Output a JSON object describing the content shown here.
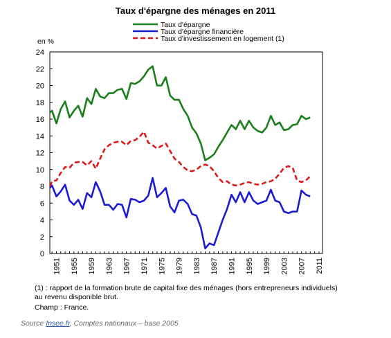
{
  "chart_data": {
    "type": "line",
    "title": "Taux d'épargne des ménages en 2011",
    "ylabel": "en %",
    "ylim": [
      0,
      24
    ],
    "yticks": [
      "0",
      "2",
      "4",
      "6",
      "8",
      "10",
      "12",
      "14",
      "16",
      "18",
      "20",
      "22",
      "24"
    ],
    "xlim": [
      1949.5,
      2011.8
    ],
    "xtick_labels": [
      "1951",
      "1955",
      "1959",
      "1963",
      "1967",
      "1971",
      "1975",
      "1979",
      "1983",
      "1987",
      "1991",
      "1995",
      "1999",
      "2003",
      "2007",
      "2011"
    ],
    "grid": false,
    "legend_position": "top-center",
    "series": [
      {
        "name": "Taux d'épargne",
        "color": "#1a7f1a",
        "style": "solid",
        "points": [
          [
            1949.5,
            16.8
          ],
          [
            1950,
            17.0
          ],
          [
            1951,
            15.5
          ],
          [
            1952,
            17.2
          ],
          [
            1953,
            18.1
          ],
          [
            1954,
            16.2
          ],
          [
            1955,
            17.0
          ],
          [
            1956,
            17.6
          ],
          [
            1957,
            16.3
          ],
          [
            1958,
            18.5
          ],
          [
            1959,
            17.8
          ],
          [
            1960,
            19.6
          ],
          [
            1961,
            18.7
          ],
          [
            1962,
            18.5
          ],
          [
            1963,
            19.1
          ],
          [
            1964,
            19.1
          ],
          [
            1965,
            19.5
          ],
          [
            1966,
            19.6
          ],
          [
            1967,
            18.4
          ],
          [
            1968,
            20.3
          ],
          [
            1969,
            20.2
          ],
          [
            1970,
            20.5
          ],
          [
            1971,
            21.1
          ],
          [
            1972,
            21.9
          ],
          [
            1973,
            22.3
          ],
          [
            1974,
            20.0
          ],
          [
            1975,
            20.0
          ],
          [
            1976,
            21.0
          ],
          [
            1977,
            18.8
          ],
          [
            1978,
            18.3
          ],
          [
            1979,
            18.3
          ],
          [
            1980,
            17.2
          ],
          [
            1981,
            16.4
          ],
          [
            1982,
            15.0
          ],
          [
            1983,
            14.3
          ],
          [
            1984,
            13.1
          ],
          [
            1985,
            11.1
          ],
          [
            1986,
            11.4
          ],
          [
            1987,
            11.8
          ],
          [
            1988,
            12.7
          ],
          [
            1989,
            13.5
          ],
          [
            1990,
            14.4
          ],
          [
            1991,
            15.3
          ],
          [
            1992,
            14.8
          ],
          [
            1993,
            15.8
          ],
          [
            1994,
            14.8
          ],
          [
            1995,
            15.8
          ],
          [
            1996,
            15.0
          ],
          [
            1997,
            14.6
          ],
          [
            1998,
            14.4
          ],
          [
            1999,
            15.0
          ],
          [
            2000,
            16.4
          ],
          [
            2001,
            15.3
          ],
          [
            2002,
            15.6
          ],
          [
            2003,
            14.7
          ],
          [
            2004,
            14.8
          ],
          [
            2005,
            15.3
          ],
          [
            2006,
            15.4
          ],
          [
            2007,
            16.4
          ],
          [
            2008,
            16.0
          ],
          [
            2009,
            16.2
          ]
        ]
      },
      {
        "name": "Taux d'épargne financière",
        "color": "#1b1bd1",
        "style": "solid",
        "points": [
          [
            1949.5,
            7.8
          ],
          [
            1950,
            8.1
          ],
          [
            1951,
            6.8
          ],
          [
            1952,
            7.4
          ],
          [
            1953,
            8.2
          ],
          [
            1954,
            6.3
          ],
          [
            1955,
            5.8
          ],
          [
            1956,
            6.4
          ],
          [
            1957,
            5.3
          ],
          [
            1958,
            7.2
          ],
          [
            1959,
            6.7
          ],
          [
            1960,
            8.5
          ],
          [
            1961,
            7.4
          ],
          [
            1962,
            5.8
          ],
          [
            1963,
            5.8
          ],
          [
            1964,
            5.2
          ],
          [
            1965,
            5.9
          ],
          [
            1966,
            5.8
          ],
          [
            1967,
            4.3
          ],
          [
            1968,
            6.5
          ],
          [
            1969,
            6.4
          ],
          [
            1970,
            6.1
          ],
          [
            1971,
            6.3
          ],
          [
            1972,
            6.9
          ],
          [
            1973,
            9.0
          ],
          [
            1974,
            6.7
          ],
          [
            1975,
            7.2
          ],
          [
            1976,
            7.8
          ],
          [
            1977,
            5.6
          ],
          [
            1978,
            4.9
          ],
          [
            1979,
            6.3
          ],
          [
            1980,
            6.4
          ],
          [
            1981,
            5.9
          ],
          [
            1982,
            4.7
          ],
          [
            1983,
            4.5
          ],
          [
            1984,
            3.1
          ],
          [
            1985,
            0.6
          ],
          [
            1986,
            1.2
          ],
          [
            1987,
            1.0
          ],
          [
            1988,
            2.5
          ],
          [
            1989,
            4.0
          ],
          [
            1990,
            5.3
          ],
          [
            1991,
            7.0
          ],
          [
            1992,
            6.1
          ],
          [
            1993,
            7.3
          ],
          [
            1994,
            6.1
          ],
          [
            1995,
            7.3
          ],
          [
            1996,
            6.3
          ],
          [
            1997,
            5.9
          ],
          [
            1998,
            6.1
          ],
          [
            1999,
            6.3
          ],
          [
            2000,
            7.6
          ],
          [
            2001,
            6.3
          ],
          [
            2002,
            6.1
          ],
          [
            2003,
            5.0
          ],
          [
            2004,
            4.8
          ],
          [
            2005,
            5.0
          ],
          [
            2006,
            5.0
          ],
          [
            2007,
            7.5
          ],
          [
            2008,
            7.0
          ],
          [
            2009,
            6.8
          ]
        ]
      },
      {
        "name": "Taux d'investissement en logement (1)",
        "color": "#dd1a1a",
        "style": "dashed",
        "points": [
          [
            1949.5,
            8.0
          ],
          [
            1950,
            8.6
          ],
          [
            1951,
            8.7
          ],
          [
            1952,
            9.6
          ],
          [
            1953,
            10.3
          ],
          [
            1954,
            10.2
          ],
          [
            1955,
            10.8
          ],
          [
            1956,
            10.9
          ],
          [
            1957,
            10.9
          ],
          [
            1958,
            10.5
          ],
          [
            1959,
            11.0
          ],
          [
            1960,
            10.1
          ],
          [
            1961,
            11.3
          ],
          [
            1962,
            12.4
          ],
          [
            1963,
            12.9
          ],
          [
            1964,
            13.2
          ],
          [
            1965,
            13.3
          ],
          [
            1966,
            13.3
          ],
          [
            1967,
            12.9
          ],
          [
            1968,
            13.4
          ],
          [
            1969,
            13.5
          ],
          [
            1970,
            13.9
          ],
          [
            1971,
            14.5
          ],
          [
            1972,
            13.2
          ],
          [
            1973,
            12.9
          ],
          [
            1974,
            12.5
          ],
          [
            1975,
            12.8
          ],
          [
            1976,
            13.1
          ],
          [
            1977,
            12.2
          ],
          [
            1978,
            11.3
          ],
          [
            1979,
            10.9
          ],
          [
            1980,
            10.3
          ],
          [
            1981,
            9.9
          ],
          [
            1982,
            9.8
          ],
          [
            1983,
            10.0
          ],
          [
            1984,
            10.4
          ],
          [
            1985,
            10.6
          ],
          [
            1986,
            10.4
          ],
          [
            1987,
            9.8
          ],
          [
            1988,
            9.0
          ],
          [
            1989,
            8.5
          ],
          [
            1990,
            8.6
          ],
          [
            1991,
            8.2
          ],
          [
            1992,
            8.1
          ],
          [
            1993,
            8.2
          ],
          [
            1994,
            8.4
          ],
          [
            1995,
            8.5
          ],
          [
            1996,
            8.3
          ],
          [
            1997,
            8.2
          ],
          [
            1998,
            8.3
          ],
          [
            1999,
            8.5
          ],
          [
            2000,
            8.6
          ],
          [
            2001,
            8.9
          ],
          [
            2002,
            9.5
          ],
          [
            2003,
            10.2
          ],
          [
            2004,
            10.4
          ],
          [
            2005,
            10.2
          ],
          [
            2006,
            8.7
          ],
          [
            2007,
            8.5
          ],
          [
            2008,
            8.7
          ],
          [
            2009,
            9.2
          ]
        ]
      }
    ]
  },
  "notes": {
    "line1": "(1) : rapport de la formation brute de capital fixe des ménages (hors entrepreneurs individuels)",
    "line2": "au revenu disponible brut.",
    "line3": "Champ : France."
  },
  "source": {
    "prefix": "Source ",
    "link": "Insee.fr",
    "suffix": ", Comptes nationaux – base 2005"
  }
}
